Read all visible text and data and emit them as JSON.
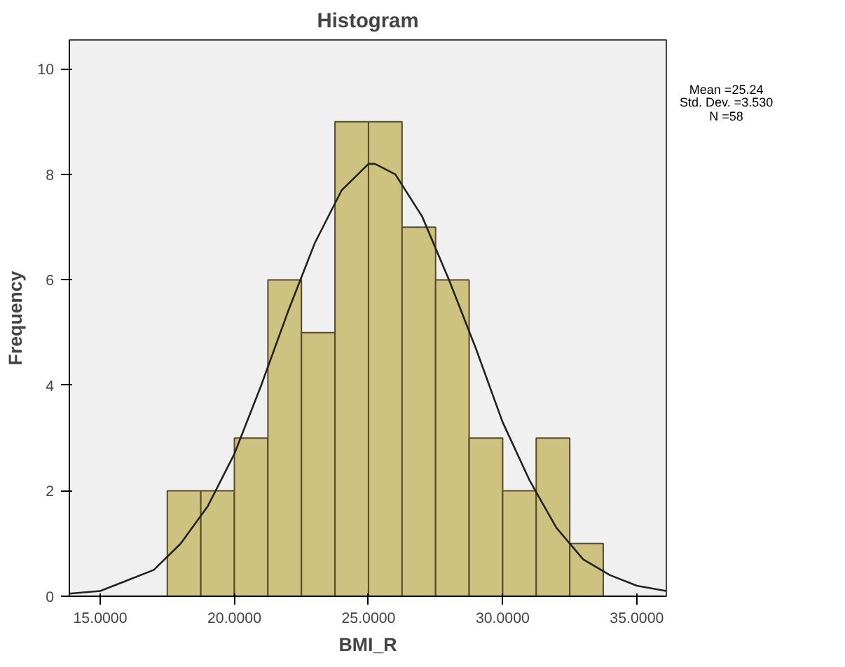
{
  "chart_data": {
    "type": "histogram",
    "title": "Histogram",
    "xlabel": "BMI_R",
    "ylabel": "Frequency",
    "series": [
      {
        "color": "#cdc27f",
        "bins": [
          17.5,
          18.75,
          20.0,
          21.25,
          22.5,
          23.75,
          25.0,
          26.25,
          27.5,
          28.75,
          30.0,
          31.25,
          32.5,
          33.75
        ],
        "values": [
          2,
          2,
          3,
          6,
          5,
          9,
          9,
          7,
          6,
          3,
          2,
          3,
          1
        ]
      },
      {
        "type": "line",
        "color": "#222222",
        "x": [
          13.85,
          15,
          16,
          17,
          18,
          19,
          20,
          21,
          22,
          23,
          24,
          25,
          25.24,
          26,
          27,
          28,
          29,
          30,
          31,
          32,
          33,
          34,
          35,
          36.1
        ],
        "values": [
          0.05,
          0.1,
          0.3,
          0.5,
          1.0,
          1.7,
          2.7,
          4.0,
          5.4,
          6.7,
          7.7,
          8.2,
          8.2,
          8.0,
          7.2,
          6.0,
          4.7,
          3.3,
          2.2,
          1.3,
          0.7,
          0.4,
          0.2,
          0.1
        ]
      }
    ],
    "xlim": [
      13.85,
      36.1
    ],
    "ylim": [
      0,
      10.55
    ],
    "xticks": [
      {
        "value": 15,
        "label": "15.0000"
      },
      {
        "value": 20,
        "label": "20.0000"
      },
      {
        "value": 25,
        "label": "25.0000"
      },
      {
        "value": 30,
        "label": "30.0000"
      },
      {
        "value": 35,
        "label": "35.0000"
      }
    ],
    "yticks": [
      0,
      2,
      4,
      6,
      8,
      10
    ],
    "grid": false,
    "annotations": [
      "Mean =25.24",
      "Std. Dev. =3.530",
      "N =58"
    ]
  }
}
